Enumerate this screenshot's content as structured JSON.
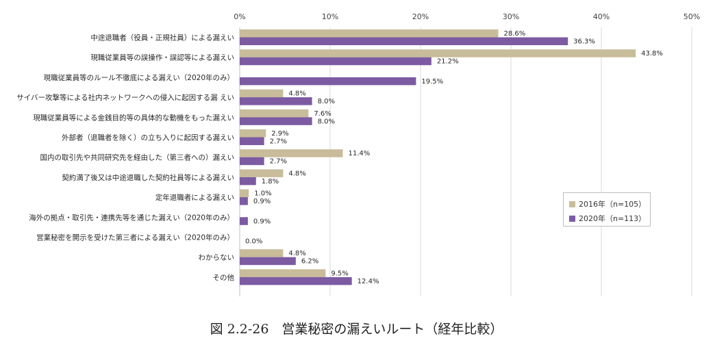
{
  "figure": {
    "caption": "図 2.2-26　営業秘密の漏えいルート（経年比較）"
  },
  "colors": {
    "series_2016": "#c8bc9a",
    "series_2020": "#7c5ba2",
    "grid": "#d9d9d9"
  },
  "chart_data": {
    "type": "bar",
    "orientation": "horizontal",
    "xlim": [
      0,
      50
    ],
    "x_ticks": [
      "0%",
      "10%",
      "20%",
      "30%",
      "40%",
      "50%"
    ],
    "grid": true,
    "legend_position": "right",
    "categories": [
      "中途退職者（役員・正規社員）による漏えい",
      "現職従業員等の誤操作・誤認等による漏えい",
      "現職従業員等のルール不徹底による漏えい（2020年のみ）",
      "サイバー攻撃等による社内ネットワークへの侵入に起因する漏 えい",
      "現職従業員等による金銭目的等の具体的な動機をもった漏えい",
      "外部者（退職者を除く）の立ち入りに起因する漏えい",
      "国内の取引先や共同研究先を経由した（第三者への）漏えい",
      "契約満了後又は中途退職した契約社員等による漏えい",
      "定年退職者による漏えい",
      "海外の拠点・取引先・連携先等を通じた漏えい（2020年のみ）",
      "営業秘密を開示を受けた第三者による漏えい（2020年のみ）",
      "わからない",
      "その他"
    ],
    "series": [
      {
        "name": "2016年（n=105）",
        "values": [
          28.6,
          43.8,
          null,
          4.8,
          7.6,
          2.9,
          11.4,
          4.8,
          1.0,
          null,
          null,
          4.8,
          9.5
        ],
        "labels": [
          "28.6%",
          "43.8%",
          "",
          "4.8%",
          "7.6%",
          "2.9%",
          "11.4%",
          "4.8%",
          "1.0%",
          "",
          "",
          "4.8%",
          "9.5%"
        ]
      },
      {
        "name": "2020年（n=113）",
        "values": [
          36.3,
          21.2,
          19.5,
          8.0,
          8.0,
          2.7,
          2.7,
          1.8,
          0.9,
          0.9,
          0.0,
          6.2,
          12.4
        ],
        "labels": [
          "36.3%",
          "21.2%",
          "19.5%",
          "8.0%",
          "8.0%",
          "2.7%",
          "2.7%",
          "1.8%",
          "0.9%",
          "0.9%",
          "0.0%",
          "6.2%",
          "12.4%"
        ]
      }
    ]
  }
}
